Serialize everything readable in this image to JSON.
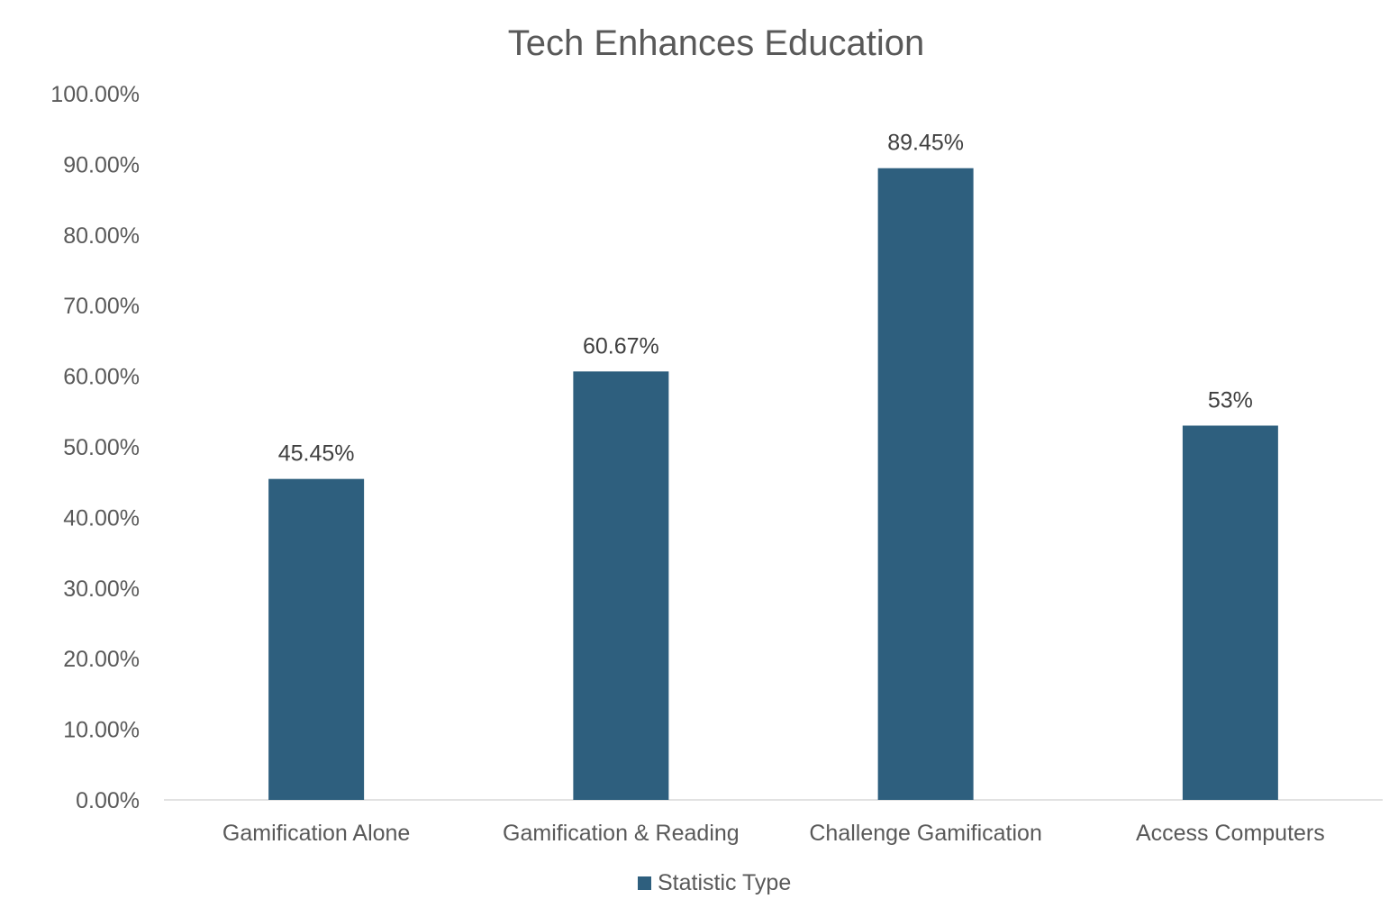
{
  "chart_data": {
    "type": "bar",
    "title": "Tech Enhances Education",
    "xlabel": "",
    "ylabel": "",
    "categories": [
      "Gamification Alone",
      "Gamification & Reading",
      "Challenge Gamification",
      "Access Computers"
    ],
    "series": [
      {
        "name": "Statistic Type",
        "values": [
          45.45,
          60.67,
          89.45,
          53
        ],
        "data_labels": [
          "45.45%",
          "60.67%",
          "89.45%",
          "53%"
        ]
      }
    ],
    "ylim": [
      0,
      100
    ],
    "yticks": [
      0,
      10,
      20,
      30,
      40,
      50,
      60,
      70,
      80,
      90,
      100
    ],
    "ytick_labels": [
      "0.00%",
      "10.00%",
      "20.00%",
      "30.00%",
      "40.00%",
      "50.00%",
      "60.00%",
      "70.00%",
      "80.00%",
      "90.00%",
      "100.00%"
    ],
    "grid": false,
    "legend_position": "bottom",
    "colors": {
      "bar": "#2e5f7e",
      "axis": "#d9d9d9"
    }
  }
}
